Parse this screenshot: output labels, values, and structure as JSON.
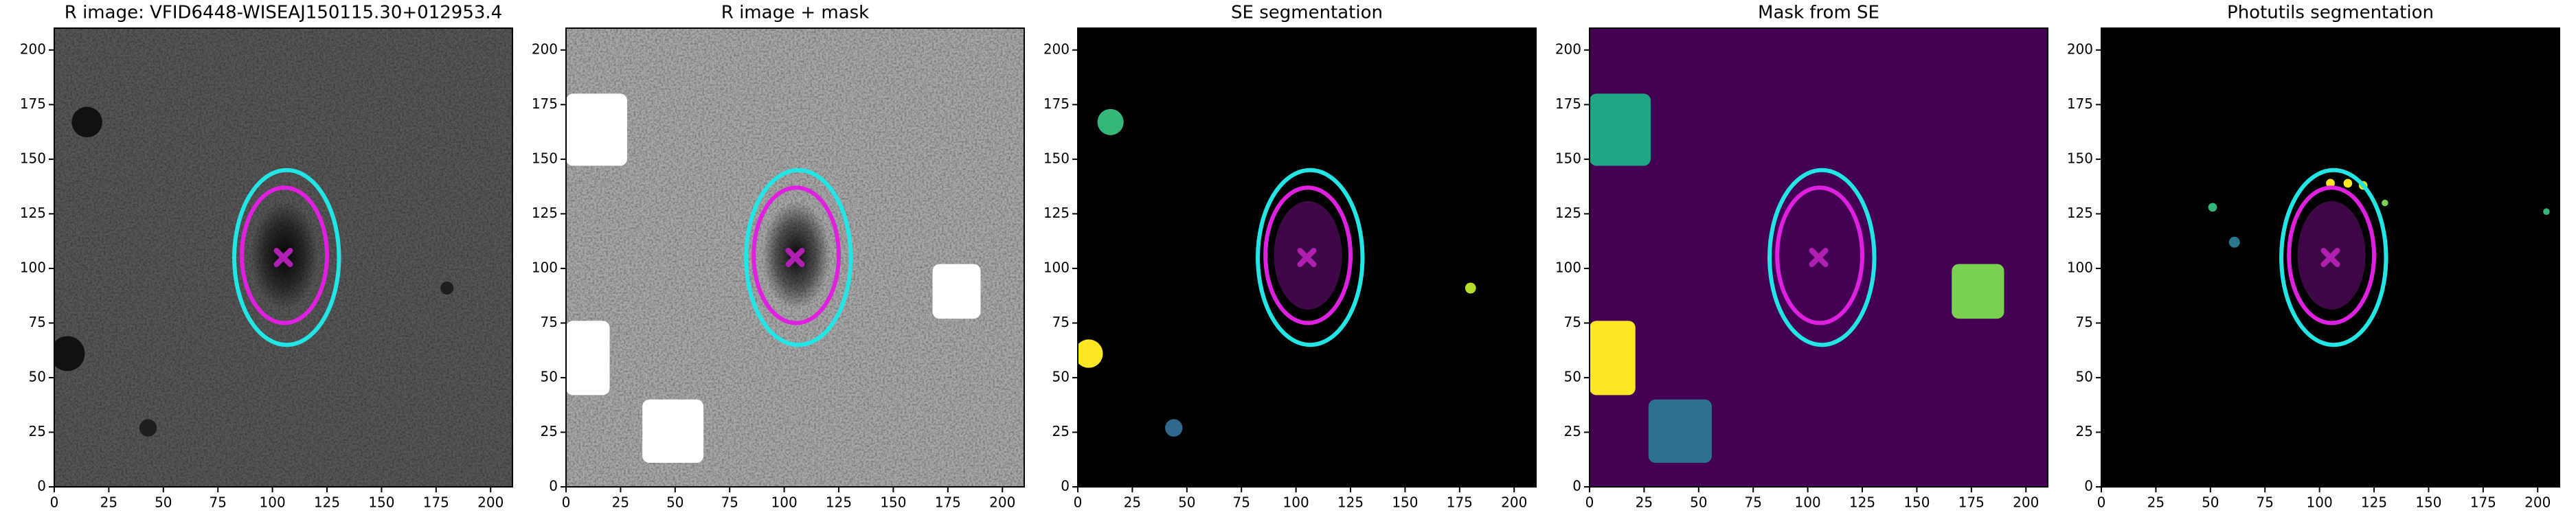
{
  "chart_data": [
    {
      "type": "image",
      "title": "R image: VFID6448-WISEAJ150115.30+012953.4",
      "background": "#565656",
      "noise": true,
      "galaxy_color": "#000000",
      "xlim": [
        0,
        210
      ],
      "ylim": [
        0,
        210
      ],
      "xticks": [
        0,
        25,
        50,
        75,
        100,
        125,
        150,
        175,
        200
      ],
      "yticks": [
        0,
        25,
        50,
        75,
        100,
        125,
        150,
        175,
        200
      ],
      "regions": [
        {
          "shape": "circle",
          "x": 15,
          "y": 167,
          "r": 7,
          "color": "#111111"
        },
        {
          "shape": "circle",
          "x": 6,
          "y": 61,
          "r": 8,
          "color": "#111111"
        },
        {
          "shape": "circle",
          "x": 43,
          "y": 27,
          "r": 4,
          "color": "#1e1e1e"
        },
        {
          "shape": "circle",
          "x": 180,
          "y": 91,
          "r": 3,
          "color": "#1e1e1e"
        }
      ],
      "ellipses": [
        {
          "cx": 106.5,
          "cy": 105,
          "rx": 24,
          "ry": 40,
          "color": "#22e5e5"
        },
        {
          "cx": 105.5,
          "cy": 106,
          "rx": 19.5,
          "ry": 31,
          "color": "#e020e0"
        }
      ],
      "marker": {
        "x": 105,
        "y": 105,
        "color": "#b020b0"
      }
    },
    {
      "type": "image",
      "title": "R image + mask",
      "background": "#a8a8a8",
      "noise": true,
      "galaxy_color": "#111111",
      "xlim": [
        0,
        210
      ],
      "ylim": [
        0,
        210
      ],
      "xticks": [
        0,
        25,
        50,
        75,
        100,
        125,
        150,
        175,
        200
      ],
      "yticks": [
        0,
        25,
        50,
        75,
        100,
        125,
        150,
        175,
        200
      ],
      "regions": [
        {
          "shape": "rect",
          "x": [
            0,
            28
          ],
          "y": [
            147,
            180
          ],
          "color": "#ffffff"
        },
        {
          "shape": "rect",
          "x": [
            0,
            20
          ],
          "y": [
            42,
            76
          ],
          "color": "#ffffff"
        },
        {
          "shape": "rect",
          "x": [
            35,
            63
          ],
          "y": [
            11,
            40
          ],
          "color": "#ffffff"
        },
        {
          "shape": "rect",
          "x": [
            168,
            190
          ],
          "y": [
            77,
            102
          ],
          "color": "#ffffff"
        }
      ],
      "ellipses": [
        {
          "cx": 106.5,
          "cy": 105,
          "rx": 24,
          "ry": 40,
          "color": "#22e5e5"
        },
        {
          "cx": 105.5,
          "cy": 106,
          "rx": 19.5,
          "ry": 31,
          "color": "#e020e0"
        }
      ],
      "marker": {
        "x": 105,
        "y": 105,
        "color": "#b020b0"
      }
    },
    {
      "type": "image",
      "title": "SE segmentation",
      "background": "#000000",
      "noise": false,
      "galaxy_color": "#3d0845",
      "xlim": [
        0,
        210
      ],
      "ylim": [
        0,
        210
      ],
      "xticks": [
        0,
        25,
        50,
        75,
        100,
        125,
        150,
        175,
        200
      ],
      "yticks": [
        0,
        25,
        50,
        75,
        100,
        125,
        150,
        175,
        200
      ],
      "regions": [
        {
          "shape": "circle",
          "x": 15,
          "y": 167,
          "r": 6,
          "color": "#35b779"
        },
        {
          "shape": "circle",
          "x": 5,
          "y": 61,
          "r": 6.5,
          "color": "#fde725"
        },
        {
          "shape": "circle",
          "x": 44,
          "y": 27,
          "r": 4,
          "color": "#31688e"
        },
        {
          "shape": "circle",
          "x": 180,
          "y": 91,
          "r": 2.5,
          "color": "#b5de2b"
        }
      ],
      "ellipses": [
        {
          "cx": 106.5,
          "cy": 105,
          "rx": 24,
          "ry": 40,
          "color": "#22e5e5"
        },
        {
          "cx": 105.5,
          "cy": 106,
          "rx": 19.5,
          "ry": 31,
          "color": "#e020e0"
        }
      ],
      "marker": {
        "x": 105,
        "y": 105,
        "color": "#b020b0"
      }
    },
    {
      "type": "image",
      "title": "Mask from SE",
      "background": "#440154",
      "noise": false,
      "xlim": [
        0,
        210
      ],
      "ylim": [
        0,
        210
      ],
      "xticks": [
        0,
        25,
        50,
        75,
        100,
        125,
        150,
        175,
        200
      ],
      "yticks": [
        0,
        25,
        50,
        75,
        100,
        125,
        150,
        175,
        200
      ],
      "regions": [
        {
          "shape": "rect",
          "x": [
            0,
            28
          ],
          "y": [
            147,
            180
          ],
          "color": "#21a685"
        },
        {
          "shape": "rect",
          "x": [
            0,
            21
          ],
          "y": [
            42,
            76
          ],
          "color": "#fde725"
        },
        {
          "shape": "rect",
          "x": [
            27,
            56
          ],
          "y": [
            11,
            40
          ],
          "color": "#2c728e"
        },
        {
          "shape": "rect",
          "x": [
            166,
            190
          ],
          "y": [
            77,
            102
          ],
          "color": "#7ad151"
        }
      ],
      "ellipses": [
        {
          "cx": 106.5,
          "cy": 105,
          "rx": 24,
          "ry": 40,
          "color": "#22e5e5"
        },
        {
          "cx": 105.5,
          "cy": 106,
          "rx": 19.5,
          "ry": 31,
          "color": "#e020e0"
        }
      ],
      "marker": {
        "x": 105,
        "y": 105,
        "color": "#b020b0"
      }
    },
    {
      "type": "image",
      "title": "Photutils segmentation",
      "background": "#000000",
      "noise": false,
      "galaxy_color": "#3d0845",
      "xlim": [
        0,
        210
      ],
      "ylim": [
        0,
        210
      ],
      "xticks": [
        0,
        25,
        50,
        75,
        100,
        125,
        150,
        175,
        200
      ],
      "yticks": [
        0,
        25,
        50,
        75,
        100,
        125,
        150,
        175,
        200
      ],
      "regions": [
        {
          "shape": "circle",
          "x": 105,
          "y": 139,
          "r": 2,
          "color": "#fde725"
        },
        {
          "shape": "circle",
          "x": 113,
          "y": 139,
          "r": 2,
          "color": "#fde725"
        },
        {
          "shape": "circle",
          "x": 120,
          "y": 138,
          "r": 2,
          "color": "#d8e219"
        },
        {
          "shape": "circle",
          "x": 130,
          "y": 130,
          "r": 1.5,
          "color": "#7ad151"
        },
        {
          "shape": "circle",
          "x": 51,
          "y": 128,
          "r": 2,
          "color": "#35b779"
        },
        {
          "shape": "circle",
          "x": 61,
          "y": 112,
          "r": 2.5,
          "color": "#2a788e"
        },
        {
          "shape": "circle",
          "x": 204,
          "y": 126,
          "r": 1.5,
          "color": "#35b779"
        }
      ],
      "ellipses": [
        {
          "cx": 106.5,
          "cy": 105,
          "rx": 24,
          "ry": 40,
          "color": "#22e5e5"
        },
        {
          "cx": 105.5,
          "cy": 106,
          "rx": 19.5,
          "ry": 31,
          "color": "#e020e0"
        }
      ],
      "marker": {
        "x": 105,
        "y": 105,
        "color": "#b020b0"
      }
    }
  ]
}
